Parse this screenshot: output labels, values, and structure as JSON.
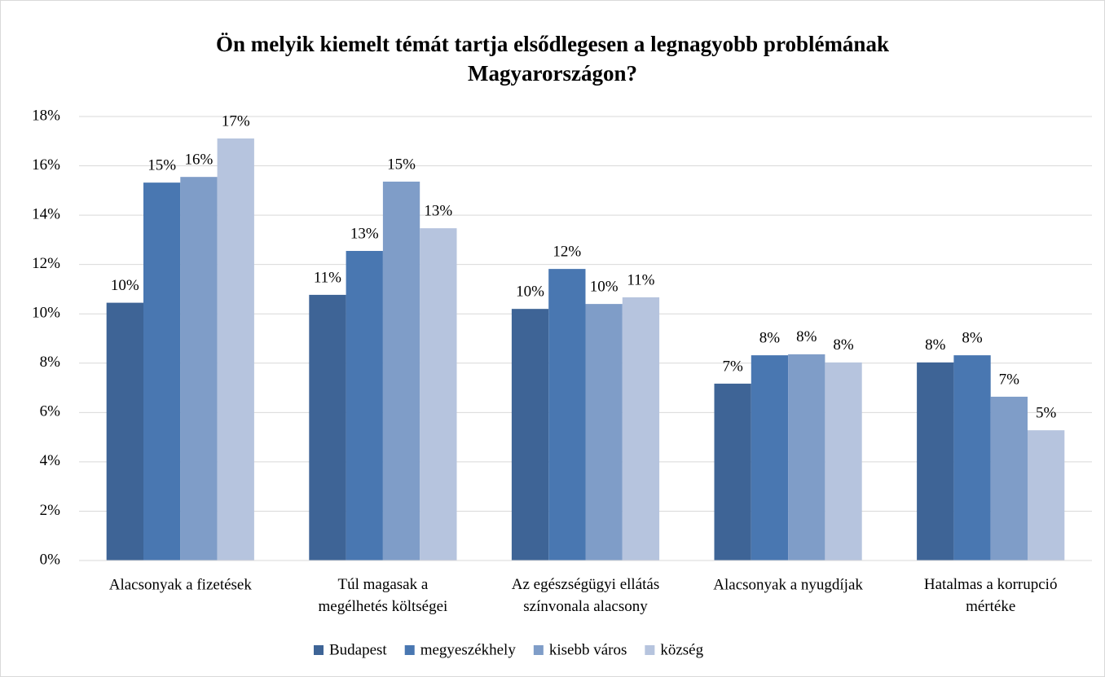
{
  "chart_data": {
    "type": "bar",
    "title": "Ön melyik kiemelt témát tartja elsődlegesen a legnagyobb problémának\nMagyarországon?",
    "categories": [
      "Alacsonyak a fizetések",
      "Túl magasak a\nmegélhetés költségei",
      "Az egészségügyi ellátás\nszínvonala alacsony",
      "Alacsonyak a nyugdíjak",
      "Hatalmas a korrupció\nmértéke"
    ],
    "series": [
      {
        "name": "Budapest",
        "color": "#3e6496",
        "values": [
          10.45,
          10.77,
          10.2,
          7.17,
          8.03
        ],
        "value_labels": [
          "10%",
          "11%",
          "10%",
          "7%",
          "8%"
        ]
      },
      {
        "name": "megyeszékhely",
        "color": "#4977b1",
        "values": [
          15.32,
          12.55,
          11.82,
          8.32,
          8.32
        ],
        "value_labels": [
          "15%",
          "13%",
          "12%",
          "8%",
          "8%"
        ]
      },
      {
        "name": "kisebb város",
        "color": "#7f9dc8",
        "values": [
          15.55,
          15.36,
          10.4,
          8.36,
          6.64
        ],
        "value_labels": [
          "16%",
          "15%",
          "10%",
          "8%",
          "7%"
        ]
      },
      {
        "name": "község",
        "color": "#b6c4de",
        "values": [
          17.11,
          13.47,
          10.67,
          8.03,
          5.28
        ],
        "value_labels": [
          "17%",
          "13%",
          "11%",
          "8%",
          "5%"
        ]
      }
    ],
    "ylim": [
      0,
      18
    ],
    "yticks": [
      {
        "value": 0,
        "label": "0%"
      },
      {
        "value": 2,
        "label": "2%"
      },
      {
        "value": 4,
        "label": "4%"
      },
      {
        "value": 6,
        "label": "6%"
      },
      {
        "value": 8,
        "label": "8%"
      },
      {
        "value": 10,
        "label": "10%"
      },
      {
        "value": 12,
        "label": "12%"
      },
      {
        "value": 14,
        "label": "14%"
      },
      {
        "value": 16,
        "label": "16%"
      },
      {
        "value": 18,
        "label": "18%"
      }
    ],
    "grid": true,
    "legend": "bottom"
  }
}
